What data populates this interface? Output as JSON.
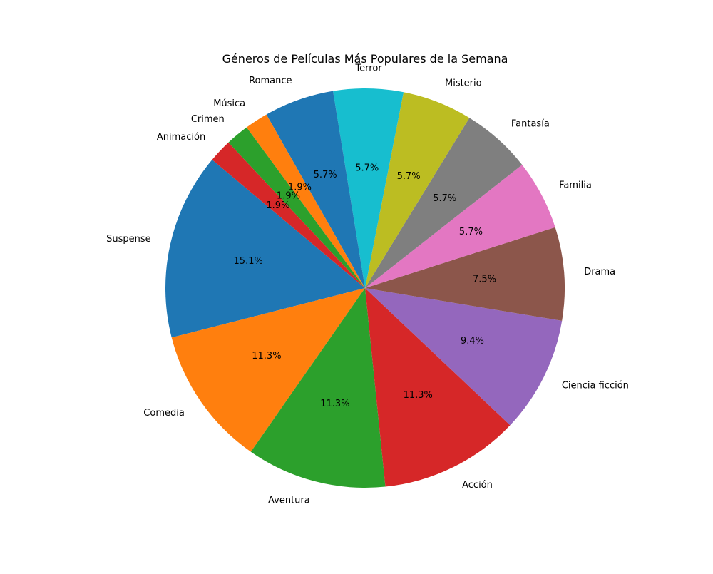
{
  "chart_data": {
    "type": "pie",
    "title": "Géneros de Películas Más Populares de la Semana",
    "start_angle_deg": 140,
    "direction": "counterclockwise",
    "slices": [
      {
        "label": "Suspense",
        "value": 8,
        "pct_label": "15.1%",
        "color": "#1f77b4"
      },
      {
        "label": "Comedia",
        "value": 6,
        "pct_label": "11.3%",
        "color": "#ff7f0e"
      },
      {
        "label": "Aventura",
        "value": 6,
        "pct_label": "11.3%",
        "color": "#2ca02c"
      },
      {
        "label": "Acción",
        "value": 6,
        "pct_label": "11.3%",
        "color": "#d62728"
      },
      {
        "label": "Ciencia ficción",
        "value": 5,
        "pct_label": "9.4%",
        "color": "#9467bd"
      },
      {
        "label": "Drama",
        "value": 4,
        "pct_label": "7.5%",
        "color": "#8c564b"
      },
      {
        "label": "Familia",
        "value": 3,
        "pct_label": "5.7%",
        "color": "#e377c2"
      },
      {
        "label": "Fantasía",
        "value": 3,
        "pct_label": "5.7%",
        "color": "#7f7f7f"
      },
      {
        "label": "Misterio",
        "value": 3,
        "pct_label": "5.7%",
        "color": "#bcbd22"
      },
      {
        "label": "Terror",
        "value": 3,
        "pct_label": "5.7%",
        "color": "#17becf"
      },
      {
        "label": "Romance",
        "value": 3,
        "pct_label": "5.7%",
        "color": "#1f77b4"
      },
      {
        "label": "Música",
        "value": 1,
        "pct_label": "1.9%",
        "color": "#ff7f0e"
      },
      {
        "label": "Crimen",
        "value": 1,
        "pct_label": "1.9%",
        "color": "#2ca02c"
      },
      {
        "label": "Animación",
        "value": 1,
        "pct_label": "1.9%",
        "color": "#d62728"
      }
    ]
  }
}
